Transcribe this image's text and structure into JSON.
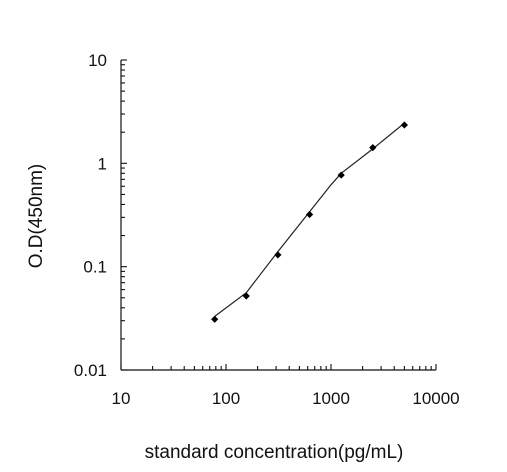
{
  "chart_data": {
    "type": "scatter",
    "xlabel": "standard concentration(pg/mL)",
    "ylabel": "O.D(450nm)",
    "x_scale": "log",
    "y_scale": "log",
    "xlim": [
      10,
      10000
    ],
    "ylim": [
      0.01,
      10
    ],
    "x_ticks": [
      10,
      100,
      1000,
      10000
    ],
    "x_tick_labels": [
      "10",
      "100",
      "1000",
      "10000"
    ],
    "y_ticks": [
      0.01,
      0.1,
      1,
      10
    ],
    "y_tick_labels": [
      "0.01",
      "0.1",
      "1",
      "10"
    ],
    "grid": false,
    "series": [
      {
        "points": [
          {
            "x": 78,
            "y": 0.031
          },
          {
            "x": 156,
            "y": 0.052
          },
          {
            "x": 312,
            "y": 0.13
          },
          {
            "x": 625,
            "y": 0.32
          },
          {
            "x": 1250,
            "y": 0.77
          },
          {
            "x": 2500,
            "y": 1.42
          },
          {
            "x": 5000,
            "y": 2.35
          }
        ],
        "fit_line": [
          {
            "x": 78,
            "y": 0.033
          },
          {
            "x": 156,
            "y": 0.056
          },
          {
            "x": 312,
            "y": 0.14
          },
          {
            "x": 625,
            "y": 0.34
          },
          {
            "x": 1000,
            "y": 0.62
          },
          {
            "x": 1250,
            "y": 0.8
          },
          {
            "x": 2500,
            "y": 1.38
          },
          {
            "x": 5000,
            "y": 2.45
          }
        ]
      }
    ]
  }
}
